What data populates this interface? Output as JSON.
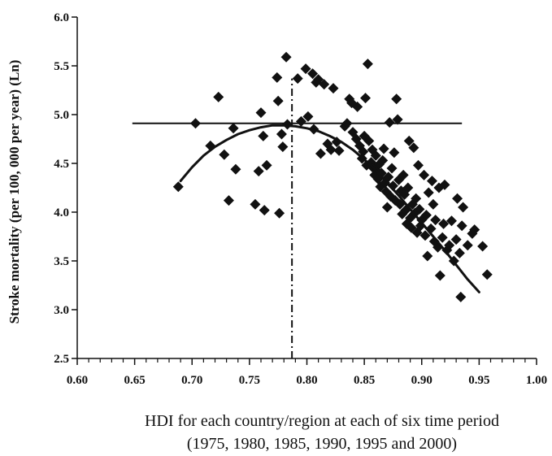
{
  "chart_data": {
    "type": "scatter",
    "title": "",
    "xlabel_lines": [
      "HDI for each country/region at each of six time period",
      "(1975, 1980, 1985, 1990, 1995 and 2000)"
    ],
    "ylabel": "Stroke mortality (per 100, 000 per year) (Ln)",
    "xlim": [
      0.6,
      1.0
    ],
    "ylim": [
      2.5,
      6.0
    ],
    "x_ticks": [
      "0.60",
      "0.65",
      "0.70",
      "0.75",
      "0.80",
      "0.85",
      "0.90",
      "0.95",
      "1.00"
    ],
    "y_ticks": [
      "2.5",
      "3.0",
      "3.5",
      "4.0",
      "4.5",
      "5.0",
      "5.5",
      "6.0"
    ],
    "grid": false,
    "legend": "none",
    "marker": "diamond",
    "color": "#111111",
    "points": [
      [
        0.688,
        4.26
      ],
      [
        0.703,
        4.91
      ],
      [
        0.716,
        4.68
      ],
      [
        0.723,
        5.18
      ],
      [
        0.728,
        4.59
      ],
      [
        0.732,
        4.12
      ],
      [
        0.736,
        4.86
      ],
      [
        0.738,
        4.44
      ],
      [
        0.755,
        4.08
      ],
      [
        0.758,
        4.42
      ],
      [
        0.76,
        5.02
      ],
      [
        0.762,
        4.78
      ],
      [
        0.763,
        4.02
      ],
      [
        0.765,
        4.48
      ],
      [
        0.774,
        5.38
      ],
      [
        0.775,
        5.14
      ],
      [
        0.776,
        3.99
      ],
      [
        0.778,
        4.8
      ],
      [
        0.779,
        4.67
      ],
      [
        0.782,
        5.59
      ],
      [
        0.783,
        4.9
      ],
      [
        0.792,
        5.37
      ],
      [
        0.795,
        4.93
      ],
      [
        0.799,
        5.47
      ],
      [
        0.801,
        4.98
      ],
      [
        0.805,
        5.42
      ],
      [
        0.806,
        4.85
      ],
      [
        0.808,
        5.33
      ],
      [
        0.81,
        5.36
      ],
      [
        0.812,
        4.6
      ],
      [
        0.815,
        5.31
      ],
      [
        0.818,
        4.7
      ],
      [
        0.821,
        4.64
      ],
      [
        0.823,
        5.27
      ],
      [
        0.826,
        4.72
      ],
      [
        0.828,
        4.63
      ],
      [
        0.833,
        4.88
      ],
      [
        0.835,
        4.91
      ],
      [
        0.837,
        5.16
      ],
      [
        0.839,
        5.12
      ],
      [
        0.84,
        4.82
      ],
      [
        0.843,
        4.75
      ],
      [
        0.844,
        5.08
      ],
      [
        0.846,
        4.68
      ],
      [
        0.848,
        4.55
      ],
      [
        0.849,
        4.62
      ],
      [
        0.85,
        4.78
      ],
      [
        0.851,
        5.17
      ],
      [
        0.852,
        4.48
      ],
      [
        0.853,
        5.52
      ],
      [
        0.854,
        4.73
      ],
      [
        0.856,
        4.51
      ],
      [
        0.857,
        4.64
      ],
      [
        0.858,
        4.45
      ],
      [
        0.859,
        4.38
      ],
      [
        0.86,
        4.58
      ],
      [
        0.861,
        4.42
      ],
      [
        0.862,
        4.34
      ],
      [
        0.863,
        4.49
      ],
      [
        0.864,
        4.26
      ],
      [
        0.865,
        4.4
      ],
      [
        0.866,
        4.53
      ],
      [
        0.867,
        4.65
      ],
      [
        0.868,
        4.3
      ],
      [
        0.869,
        4.21
      ],
      [
        0.87,
        4.05
      ],
      [
        0.871,
        4.36
      ],
      [
        0.872,
        4.92
      ],
      [
        0.873,
        4.16
      ],
      [
        0.874,
        4.45
      ],
      [
        0.875,
        4.27
      ],
      [
        0.876,
        4.61
      ],
      [
        0.877,
        4.12
      ],
      [
        0.878,
        5.16
      ],
      [
        0.879,
        4.95
      ],
      [
        0.88,
        4.33
      ],
      [
        0.881,
        4.08
      ],
      [
        0.882,
        4.22
      ],
      [
        0.883,
        3.98
      ],
      [
        0.884,
        4.38
      ],
      [
        0.885,
        4.18
      ],
      [
        0.886,
        4.02
      ],
      [
        0.887,
        3.88
      ],
      [
        0.888,
        4.25
      ],
      [
        0.889,
        4.73
      ],
      [
        0.89,
        3.94
      ],
      [
        0.891,
        3.84
      ],
      [
        0.892,
        4.08
      ],
      [
        0.893,
        4.66
      ],
      [
        0.894,
        3.99
      ],
      [
        0.895,
        4.14
      ],
      [
        0.896,
        3.79
      ],
      [
        0.897,
        4.48
      ],
      [
        0.898,
        4.03
      ],
      [
        0.899,
        3.86
      ],
      [
        0.9,
        3.92
      ],
      [
        0.902,
        4.38
      ],
      [
        0.903,
        3.76
      ],
      [
        0.904,
        3.97
      ],
      [
        0.905,
        3.55
      ],
      [
        0.906,
        4.2
      ],
      [
        0.908,
        3.83
      ],
      [
        0.909,
        4.32
      ],
      [
        0.91,
        4.08
      ],
      [
        0.911,
        3.7
      ],
      [
        0.912,
        3.92
      ],
      [
        0.914,
        3.64
      ],
      [
        0.915,
        4.25
      ],
      [
        0.916,
        3.35
      ],
      [
        0.918,
        3.74
      ],
      [
        0.919,
        3.88
      ],
      [
        0.92,
        4.28
      ],
      [
        0.922,
        3.61
      ],
      [
        0.924,
        3.66
      ],
      [
        0.926,
        3.91
      ],
      [
        0.928,
        3.5
      ],
      [
        0.93,
        3.72
      ],
      [
        0.931,
        4.14
      ],
      [
        0.933,
        3.58
      ],
      [
        0.934,
        3.13
      ],
      [
        0.935,
        3.86
      ],
      [
        0.936,
        4.05
      ],
      [
        0.94,
        3.66
      ],
      [
        0.944,
        3.78
      ],
      [
        0.946,
        3.82
      ],
      [
        0.953,
        3.65
      ],
      [
        0.957,
        3.36
      ]
    ],
    "fit_curve": [
      [
        0.69,
        4.32
      ],
      [
        0.7,
        4.46
      ],
      [
        0.71,
        4.58
      ],
      [
        0.72,
        4.67
      ],
      [
        0.73,
        4.74
      ],
      [
        0.74,
        4.8
      ],
      [
        0.75,
        4.84
      ],
      [
        0.76,
        4.87
      ],
      [
        0.77,
        4.89
      ],
      [
        0.78,
        4.89
      ],
      [
        0.79,
        4.88
      ],
      [
        0.8,
        4.86
      ],
      [
        0.81,
        4.83
      ],
      [
        0.82,
        4.78
      ],
      [
        0.83,
        4.72
      ],
      [
        0.84,
        4.64
      ],
      [
        0.85,
        4.54
      ],
      [
        0.86,
        4.43
      ],
      [
        0.87,
        4.3
      ],
      [
        0.88,
        4.17
      ],
      [
        0.89,
        4.03
      ],
      [
        0.9,
        3.89
      ],
      [
        0.91,
        3.75
      ],
      [
        0.92,
        3.61
      ],
      [
        0.93,
        3.46
      ],
      [
        0.94,
        3.31
      ],
      [
        0.95,
        3.18
      ]
    ],
    "horizontal_line": {
      "y": 4.91,
      "x_start": 0.648,
      "x_end": 0.935
    },
    "vertical_dashdot_line": {
      "x": 0.787,
      "y_start": 2.5,
      "y_end": 5.37
    }
  }
}
